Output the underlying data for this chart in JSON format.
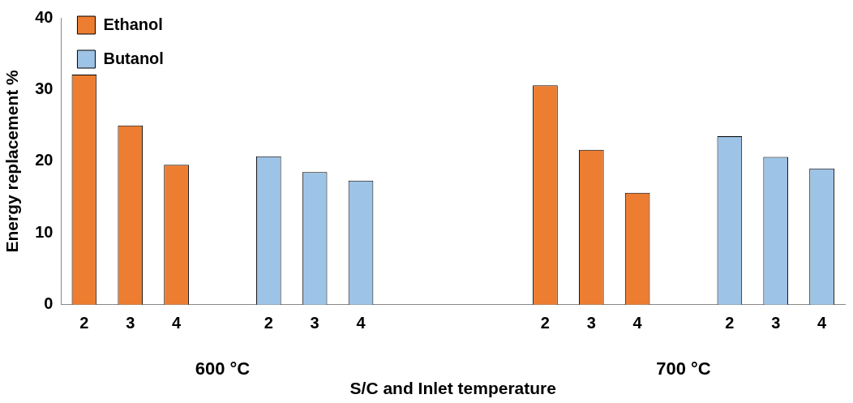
{
  "chart_data": {
    "type": "bar",
    "xlabel": "S/C and Inlet temperature",
    "ylabel": "Energy replacement %",
    "categories": [
      "2",
      "3",
      "4",
      null,
      "2",
      "3",
      "4",
      null,
      null,
      null,
      "2",
      "3",
      "4",
      null,
      "2",
      "3",
      "4"
    ],
    "series": [
      {
        "name": "Ethanol",
        "color": "#ed7d31",
        "values": [
          32.1,
          25.0,
          19.5,
          null,
          null,
          null,
          null,
          null,
          null,
          null,
          30.6,
          21.6,
          15.6,
          null,
          null,
          null,
          null
        ]
      },
      {
        "name": "Butanol",
        "color": "#9dc3e6",
        "values": [
          null,
          null,
          null,
          null,
          20.7,
          18.5,
          17.3,
          null,
          null,
          null,
          null,
          null,
          null,
          null,
          23.5,
          20.6,
          19.0
        ]
      }
    ],
    "ylim": [
      0,
      40
    ],
    "yticks": [
      0,
      10,
      20,
      30,
      40
    ],
    "grid": false,
    "legend": "top left",
    "annotations": [
      "600 °C",
      "700 °C"
    ]
  }
}
